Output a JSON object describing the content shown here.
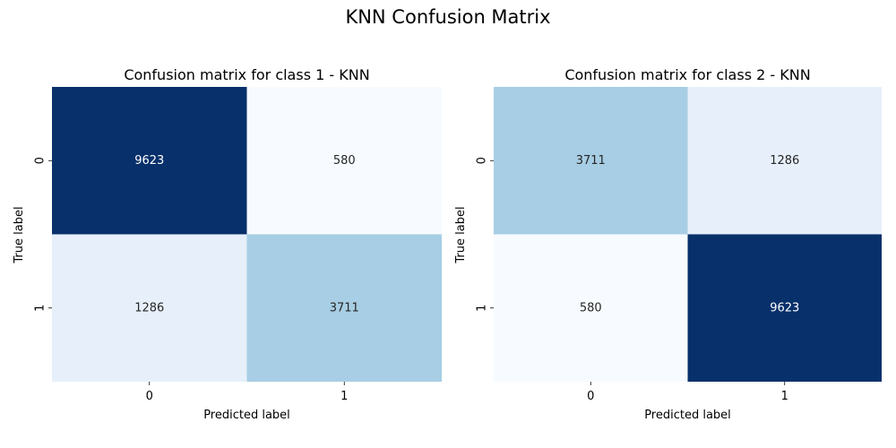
{
  "figure": {
    "suptitle": "KNN Confusion Matrix"
  },
  "chart_data": [
    {
      "type": "heatmap",
      "title": "Confusion matrix for class 1 - KNN",
      "xlabel": "Predicted label",
      "ylabel": "True label",
      "x_tick_labels": [
        "0",
        "1"
      ],
      "y_tick_labels": [
        "0",
        "1"
      ],
      "values": [
        [
          9623,
          580
        ],
        [
          1286,
          3711
        ]
      ],
      "colormap": "Blues",
      "color_range": [
        580,
        9623
      ],
      "colorbar": false,
      "cell_text_colors": {
        "dark": "#ffffff",
        "light": "#262626"
      },
      "cell_colors": [
        [
          "#08306b",
          "#f7fbff"
        ],
        [
          "#e7f0fa",
          "#a7cee4"
        ]
      ]
    },
    {
      "type": "heatmap",
      "title": "Confusion matrix for class 2 - KNN",
      "xlabel": "Predicted label",
      "ylabel": "True label",
      "x_tick_labels": [
        "0",
        "1"
      ],
      "y_tick_labels": [
        "0",
        "1"
      ],
      "values": [
        [
          3711,
          1286
        ],
        [
          580,
          9623
        ]
      ],
      "colormap": "Blues",
      "color_range": [
        580,
        9623
      ],
      "colorbar": false,
      "cell_text_colors": {
        "dark": "#ffffff",
        "light": "#262626"
      },
      "cell_colors": [
        [
          "#a7cee4",
          "#e7f0fa"
        ],
        [
          "#f7fbff",
          "#08306b"
        ]
      ]
    }
  ]
}
